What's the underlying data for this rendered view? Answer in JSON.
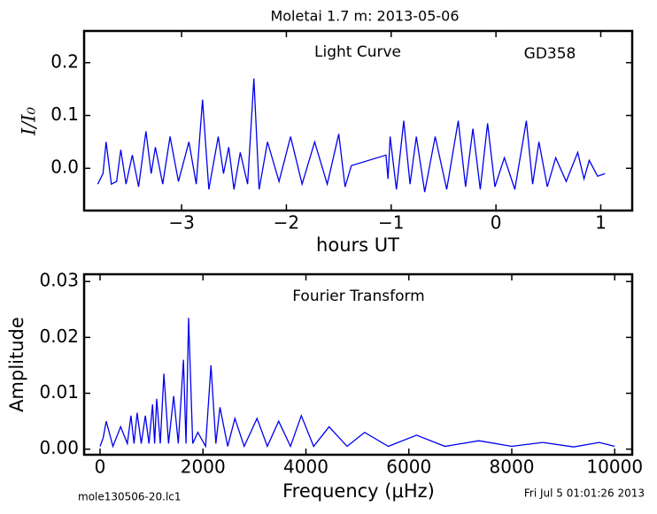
{
  "chart_data": [
    {
      "type": "line",
      "title": "Moletai 1.7 m:  2013-05-06",
      "annotations": [
        "Light Curve",
        "GD358"
      ],
      "xlabel": "hours UT",
      "ylabel": "I/I₀",
      "color": "#0000ee",
      "xlim": [
        -3.93,
        1.3
      ],
      "ylim": [
        -0.08,
        0.26
      ],
      "xticks": [
        {
          "value": -3,
          "label": "−3"
        },
        {
          "value": -2,
          "label": "−2"
        },
        {
          "value": -1,
          "label": "−1"
        },
        0,
        1
      ],
      "yticks": [
        {
          "value": 0,
          "label": "0.0"
        },
        0.1,
        0.2
      ],
      "x": [
        -3.8,
        -3.75,
        -3.72,
        -3.67,
        -3.62,
        -3.58,
        -3.53,
        -3.47,
        -3.41,
        -3.34,
        -3.29,
        -3.25,
        -3.18,
        -3.11,
        -3.03,
        -2.93,
        -2.86,
        -2.8,
        -2.74,
        -2.65,
        -2.6,
        -2.55,
        -2.5,
        -2.44,
        -2.37,
        -2.31,
        -2.26,
        -2.18,
        -2.07,
        -1.96,
        -1.85,
        -1.73,
        -1.61,
        -1.5,
        -1.44,
        -1.38,
        -1.05,
        -1.03,
        -1.01,
        -0.95,
        -0.88,
        -0.82,
        -0.76,
        -0.68,
        -0.58,
        -0.47,
        -0.36,
        -0.29,
        -0.22,
        -0.15,
        -0.08,
        -0.01,
        0.08,
        0.18,
        0.29,
        0.35,
        0.41,
        0.49,
        0.57,
        0.67,
        0.78,
        0.84,
        0.89,
        0.97,
        1.04
      ],
      "values": [
        -0.03,
        -0.01,
        0.05,
        -0.03,
        -0.025,
        0.035,
        -0.03,
        0.025,
        -0.035,
        0.07,
        -0.01,
        0.04,
        -0.03,
        0.06,
        -0.025,
        0.05,
        -0.03,
        0.13,
        -0.04,
        0.06,
        -0.01,
        0.04,
        -0.04,
        0.03,
        -0.03,
        0.17,
        -0.04,
        0.05,
        -0.025,
        0.06,
        -0.03,
        0.05,
        -0.03,
        0.065,
        -0.035,
        0.005,
        0.025,
        -0.02,
        0.06,
        -0.04,
        0.09,
        -0.03,
        0.06,
        -0.045,
        0.06,
        -0.04,
        0.09,
        -0.035,
        0.075,
        -0.04,
        0.085,
        -0.035,
        0.02,
        -0.04,
        0.09,
        -0.03,
        0.05,
        -0.035,
        0.02,
        -0.025,
        0.03,
        -0.02,
        0.015,
        -0.015,
        -0.01
      ]
    },
    {
      "type": "line",
      "title": "Fourier Transform",
      "xlabel": "Frequency (μHz)",
      "ylabel": "Amplitude",
      "color": "#0000ee",
      "xlim": [
        -310,
        10340
      ],
      "ylim": [
        -0.001,
        0.0313
      ],
      "xticks": [
        0,
        2000,
        4000,
        6000,
        8000,
        10000
      ],
      "yticks": [
        {
          "value": 0,
          "label": "0.00"
        },
        {
          "value": 0.01,
          "label": "0.01"
        },
        {
          "value": 0.02,
          "label": "0.02"
        },
        {
          "value": 0.03,
          "label": "0.03"
        }
      ],
      "x": [
        0,
        60,
        120,
        250,
        400,
        530,
        600,
        660,
        720,
        800,
        880,
        950,
        1020,
        1060,
        1100,
        1170,
        1240,
        1330,
        1430,
        1520,
        1620,
        1670,
        1720,
        1800,
        1900,
        2050,
        2155,
        2250,
        2330,
        2480,
        2620,
        2800,
        3050,
        3250,
        3470,
        3700,
        3910,
        4150,
        4450,
        4800,
        5140,
        5600,
        6150,
        6700,
        7360,
        8000,
        8600,
        9200,
        9700,
        10000
      ],
      "values": [
        0.0005,
        0.002,
        0.005,
        0.0005,
        0.004,
        0.001,
        0.006,
        0.001,
        0.0065,
        0.001,
        0.006,
        0.001,
        0.008,
        0.001,
        0.009,
        0.001,
        0.0135,
        0.001,
        0.0095,
        0.001,
        0.016,
        0.001,
        0.0235,
        0.001,
        0.003,
        0.0005,
        0.015,
        0.001,
        0.0075,
        0.0005,
        0.0055,
        0.0005,
        0.0055,
        0.0005,
        0.005,
        0.0005,
        0.006,
        0.0005,
        0.004,
        0.0005,
        0.003,
        0.0005,
        0.0025,
        0.0005,
        0.0015,
        0.0005,
        0.0012,
        0.0004,
        0.0012,
        0.0005
      ]
    }
  ],
  "footer": {
    "left": "mole130506-20.lc1",
    "right": "Fri Jul  5 01:01:26 2013"
  }
}
